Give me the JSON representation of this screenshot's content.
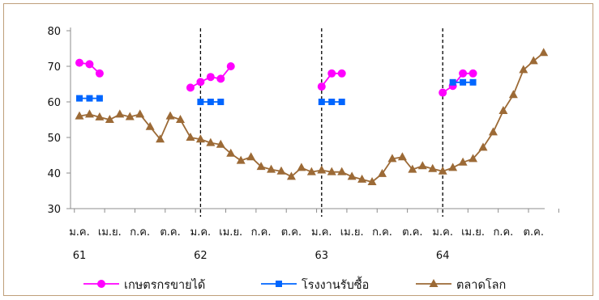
{
  "chart_data": {
    "type": "line",
    "ylim": [
      30,
      80
    ],
    "yticks": [
      30,
      40,
      50,
      60,
      70,
      80
    ],
    "grid": false,
    "legend_position": "bottom",
    "x_month_labels": [
      "ม.ค.",
      "เม.ย.",
      "ก.ค.",
      "ต.ค.",
      "ม.ค.",
      "เม.ย.",
      "ก.ค.",
      "ต.ค.",
      "ม.ค.",
      "เม.ย.",
      "ก.ค.",
      "ต.ค.",
      "ม.ค.",
      "เม.ย.",
      "ก.ค.",
      "ต.ค."
    ],
    "x_year_labels": [
      "61",
      "62",
      "63",
      "64"
    ],
    "year_start_index": [
      0,
      12,
      24,
      36
    ],
    "n_months": 48,
    "series": [
      {
        "name": "เกษตรกรขายได้",
        "color": "#ff00ff",
        "marker": "circle",
        "values": [
          71,
          70.6,
          68,
          null,
          null,
          null,
          null,
          null,
          null,
          null,
          null,
          64,
          65.6,
          67,
          66.5,
          70,
          null,
          null,
          null,
          null,
          null,
          null,
          null,
          null,
          64.3,
          68,
          68,
          null,
          null,
          null,
          null,
          null,
          null,
          null,
          null,
          null,
          62.6,
          64.5,
          68,
          68,
          null,
          null,
          null,
          null,
          null,
          null,
          null,
          null
        ]
      },
      {
        "name": "โรงงานรับซื้อ",
        "color": "#0066ff",
        "marker": "square",
        "values": [
          61,
          61,
          61,
          null,
          null,
          null,
          null,
          null,
          null,
          null,
          null,
          null,
          60,
          60,
          60,
          null,
          null,
          null,
          null,
          null,
          null,
          null,
          null,
          null,
          60,
          60,
          60,
          null,
          null,
          null,
          null,
          null,
          null,
          null,
          null,
          null,
          null,
          65.5,
          65.5,
          65.5,
          null,
          null,
          null,
          null,
          null,
          null,
          null,
          null
        ]
      },
      {
        "name": "ตลาดโลก",
        "color": "#9c6a36",
        "marker": "triangle",
        "values": [
          56,
          56.5,
          55.7,
          55,
          56.5,
          55.8,
          56.5,
          53,
          49.5,
          56,
          55,
          50,
          49.5,
          48.5,
          48,
          45.5,
          43.5,
          44.5,
          41.8,
          41,
          40.5,
          39,
          41.5,
          40.3,
          40.8,
          40.3,
          40.3,
          39,
          38.2,
          37.5,
          39.8,
          44,
          44.5,
          41,
          42,
          41.2,
          40.5,
          41.5,
          43,
          44,
          47.2,
          51.5,
          57.5,
          62,
          69,
          71.5,
          73.8,
          null
        ]
      }
    ]
  }
}
